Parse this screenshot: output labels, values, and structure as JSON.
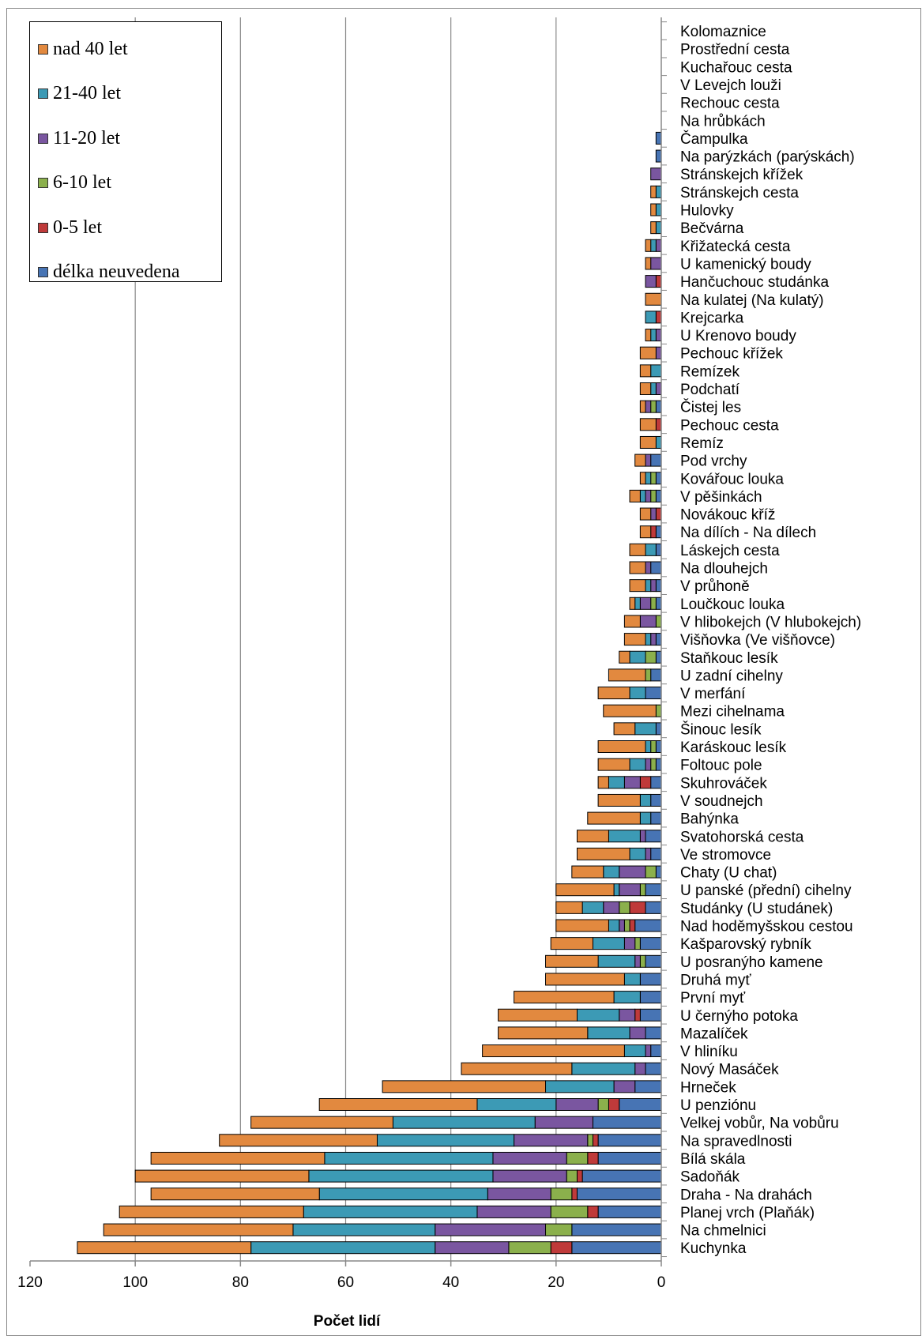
{
  "chart_data": {
    "type": "bar",
    "orientation": "horizontal",
    "stacked": true,
    "xlabel": "Počet lidí",
    "xlim": [
      0,
      120
    ],
    "x_reversed": true,
    "xticks": [
      "120",
      "100",
      "80",
      "60",
      "40",
      "20",
      "0"
    ],
    "grid": "vertical",
    "legend_position": "top-left",
    "categories": [
      "Kolomaznice",
      "Prostřední cesta",
      "Kuchařouc cesta",
      "V Levejch louži",
      "Rechouc cesta",
      "Na hrůbkách",
      "Čampulka",
      "Na parýzkách (parýskách)",
      "Stránskejch křížek",
      "Stránskejch cesta",
      "Hulovky",
      "Bečvárna",
      "Křižatecká cesta",
      "U kamenický boudy",
      "Hančuchouc studánka",
      "Na kulatej (Na kulatý)",
      "Krejcarka",
      "U Krenovo boudy",
      "Pechouc křížek",
      "Remízek",
      "Podchatí",
      "Čistej les",
      "Pechouc cesta",
      "Remíz",
      "Pod vrchy",
      "Kovářouc louka",
      "V pěšinkách",
      "Novákouc kříž",
      "Na dílích - Na dílech",
      "Láskejch cesta",
      "Na dlouhejch",
      "V průhoně",
      "Loučkouc louka",
      "V hlibokejch (V hlubokejch)",
      "Višňovka (Ve višňovce)",
      "Staňkouc lesík",
      "U zadní cihelny",
      "V merfání",
      "Mezi cihelnama",
      "Šinouc lesík",
      "Karáskouc lesík",
      "Foltouc pole",
      "Skuhrováček",
      "V soudnejch",
      "Bahýnka",
      "Svatohorská cesta",
      "Ve stromovce",
      "Chaty (U chat)",
      "U panské (přední) cihelny",
      "Studánky (U studánek)",
      "Nad hoděmyšskou cestou",
      "Kašparovský rybník",
      "U posranýho kamene",
      "Druhá myť",
      "První myť",
      "U černýho potoka",
      "Mazalíček",
      "V hliníku",
      "Nový Masáček",
      "Hrneček",
      "U penziónu",
      "Velkej vobůr, Na vobůru",
      "Na spravedlnosti",
      "Bílá skála",
      "Sadoňák",
      "Draha - Na drahách",
      "Planej vrch (Plaňák)",
      "Na chmelnici",
      "Kuchynka"
    ],
    "series": [
      {
        "name": "délka neuvedena",
        "color": "#4774b4",
        "values": [
          0,
          0,
          0,
          0,
          0,
          0,
          1,
          1,
          0,
          0,
          0,
          0,
          0,
          0,
          0,
          0,
          0,
          0,
          0,
          0,
          0,
          1,
          0,
          0,
          2,
          1,
          1,
          0,
          1,
          1,
          2,
          1,
          1,
          0,
          1,
          1,
          2,
          3,
          0,
          1,
          1,
          1,
          2,
          2,
          2,
          3,
          2,
          1,
          3,
          3,
          5,
          4,
          3,
          4,
          4,
          4,
          3,
          2,
          3,
          5,
          8,
          13,
          12,
          12,
          15,
          16,
          12,
          17,
          17
        ]
      },
      {
        "name": "0-5 let",
        "color": "#bf3a3a",
        "values": [
          0,
          0,
          0,
          0,
          0,
          0,
          0,
          0,
          0,
          0,
          0,
          0,
          0,
          0,
          1,
          0,
          1,
          0,
          0,
          0,
          0,
          0,
          1,
          0,
          0,
          0,
          0,
          1,
          1,
          0,
          0,
          0,
          0,
          0,
          0,
          0,
          0,
          0,
          0,
          0,
          0,
          0,
          2,
          0,
          0,
          0,
          0,
          0,
          0,
          3,
          1,
          0,
          0,
          0,
          0,
          1,
          0,
          0,
          0,
          0,
          2,
          0,
          1,
          2,
          1,
          1,
          2,
          0,
          4
        ]
      },
      {
        "name": "6-10 let",
        "color": "#8bb04c",
        "values": [
          0,
          0,
          0,
          0,
          0,
          0,
          0,
          0,
          0,
          0,
          0,
          0,
          0,
          0,
          0,
          0,
          0,
          0,
          0,
          0,
          0,
          1,
          0,
          0,
          0,
          1,
          1,
          0,
          0,
          0,
          0,
          0,
          1,
          1,
          0,
          2,
          1,
          0,
          1,
          0,
          1,
          1,
          0,
          0,
          0,
          0,
          0,
          2,
          1,
          2,
          1,
          1,
          1,
          0,
          0,
          0,
          0,
          0,
          0,
          0,
          2,
          0,
          1,
          4,
          2,
          4,
          7,
          5,
          8
        ]
      },
      {
        "name": "11-20 let",
        "color": "#7a56a0",
        "values": [
          0,
          0,
          0,
          0,
          0,
          0,
          0,
          0,
          2,
          0,
          0,
          0,
          1,
          2,
          2,
          0,
          0,
          1,
          1,
          0,
          1,
          1,
          0,
          0,
          1,
          0,
          1,
          1,
          0,
          0,
          1,
          1,
          2,
          3,
          1,
          0,
          0,
          0,
          0,
          0,
          0,
          1,
          3,
          0,
          0,
          1,
          1,
          5,
          4,
          3,
          1,
          2,
          1,
          0,
          0,
          3,
          3,
          1,
          2,
          4,
          8,
          11,
          14,
          14,
          14,
          12,
          14,
          21,
          14
        ]
      },
      {
        "name": "21-40 let",
        "color": "#3c9ab5",
        "values": [
          0,
          0,
          0,
          0,
          0,
          0,
          0,
          0,
          0,
          1,
          1,
          1,
          1,
          0,
          0,
          0,
          2,
          1,
          0,
          2,
          1,
          0,
          0,
          1,
          0,
          1,
          1,
          0,
          0,
          2,
          0,
          1,
          1,
          0,
          1,
          3,
          0,
          3,
          0,
          4,
          1,
          3,
          3,
          2,
          2,
          6,
          3,
          3,
          1,
          4,
          2,
          6,
          7,
          3,
          5,
          8,
          8,
          4,
          12,
          13,
          15,
          27,
          26,
          32,
          35,
          32,
          33,
          27,
          35
        ]
      },
      {
        "name": "nad 40 let",
        "color": "#e2893f",
        "values": [
          0,
          0,
          0,
          0,
          0,
          0,
          0,
          0,
          0,
          1,
          1,
          1,
          1,
          1,
          0,
          3,
          0,
          1,
          3,
          2,
          2,
          1,
          3,
          3,
          2,
          1,
          2,
          2,
          2,
          3,
          3,
          3,
          1,
          3,
          4,
          2,
          7,
          6,
          10,
          4,
          9,
          6,
          2,
          8,
          10,
          6,
          10,
          6,
          11,
          5,
          10,
          8,
          10,
          15,
          19,
          15,
          17,
          27,
          21,
          31,
          30,
          27,
          30,
          33,
          33,
          32,
          35,
          36,
          33
        ]
      }
    ]
  }
}
